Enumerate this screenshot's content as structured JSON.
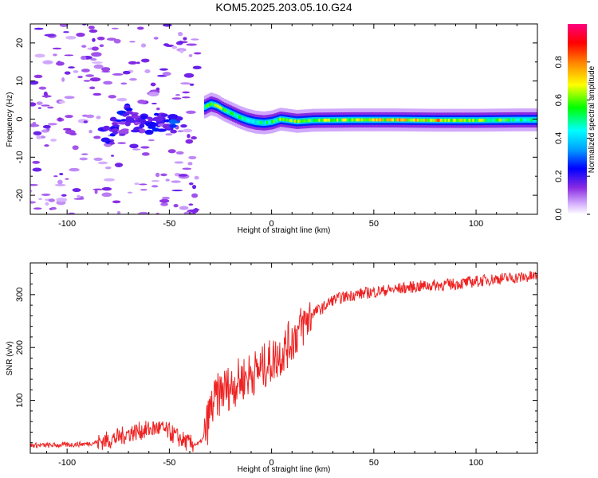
{
  "title": "KOM5.2025.203.05.10.G24",
  "colors": {
    "snr_line": "#ee2222",
    "axis": "#000000"
  },
  "colorbar": {
    "label": "Normalized spectral amplitude",
    "ticks": [
      "0.0",
      "0.2",
      "0.4",
      "0.6",
      "0.8"
    ],
    "range": [
      0,
      1
    ],
    "colormap": "rainbow (white-violet-blue-cyan-green-yellow-red-magenta)"
  },
  "chart_data": [
    {
      "type": "heatmap",
      "name": "spectrogram",
      "xlabel": "Height of straight line (km)",
      "ylabel": "Frequency (Hz)",
      "xlim": [
        -118,
        130
      ],
      "ylim": [
        -25,
        25
      ],
      "xticks": [
        -100,
        -50,
        0,
        50,
        100
      ],
      "yticks": [
        -20,
        -10,
        0,
        10,
        20
      ],
      "xtick_labels": [
        "-100",
        "-50",
        "0",
        "50",
        "100"
      ],
      "ytick_labels": [
        "-20",
        "-10",
        "0",
        "10",
        "20"
      ],
      "ridge": {
        "x": [
          -33,
          -30,
          -27,
          -24,
          -20,
          -16,
          -12,
          -8,
          -4,
          0,
          4,
          8,
          12,
          20,
          40,
          60,
          80,
          100,
          120,
          130
        ],
        "y": [
          3.2,
          4.0,
          3.5,
          2.5,
          1.5,
          0.5,
          -0.3,
          -0.8,
          -1.0,
          -0.7,
          0.0,
          -0.3,
          -0.6,
          -0.3,
          -0.2,
          -0.2,
          -0.3,
          -0.3,
          -0.2,
          -0.2
        ],
        "amplitude": [
          0.45,
          0.55,
          0.6,
          0.55,
          0.5,
          0.45,
          0.4,
          0.4,
          0.45,
          0.5,
          0.55,
          0.55,
          0.6,
          0.55,
          0.6,
          0.65,
          0.7,
          0.55,
          0.5,
          0.45
        ]
      },
      "low_altitude_clusters": {
        "x": [
          -80,
          -75,
          -72,
          -68,
          -64,
          -60,
          -56,
          -52,
          -48
        ],
        "y": [
          -4,
          -2,
          1,
          0,
          -1,
          -2,
          -1,
          -0.5,
          0.5
        ],
        "amplitude": [
          0.2,
          0.15,
          0.2,
          0.15,
          0.15,
          0.2,
          0.2,
          0.15,
          0.25
        ]
      }
    },
    {
      "type": "line",
      "name": "snr",
      "xlabel": "Height of straight line (km)",
      "ylabel": "SNR (v/v)",
      "xlim": [
        -118,
        130
      ],
      "ylim": [
        0,
        360
      ],
      "xticks": [
        -100,
        -50,
        0,
        50,
        100
      ],
      "yticks": [
        100,
        200,
        300
      ],
      "xtick_labels": [
        "-100",
        "-50",
        "0",
        "50",
        "100"
      ],
      "ytick_labels": [
        "100",
        "200",
        "300"
      ],
      "series": [
        {
          "x": [
            -118,
            -110,
            -100,
            -90,
            -80,
            -75,
            -70,
            -65,
            -60,
            -55,
            -50,
            -45,
            -40,
            -36,
            -33,
            -30,
            -27,
            -24,
            -20,
            -15,
            -10,
            -5,
            0,
            5,
            10,
            15,
            20,
            25,
            30,
            40,
            50,
            60,
            70,
            80,
            90,
            100,
            110,
            120,
            130
          ],
          "y": [
            15,
            15,
            16,
            18,
            25,
            30,
            38,
            42,
            45,
            48,
            40,
            28,
            18,
            17,
            30,
            80,
            105,
            120,
            125,
            140,
            150,
            160,
            175,
            190,
            215,
            240,
            265,
            275,
            290,
            300,
            305,
            310,
            315,
            318,
            320,
            325,
            330,
            332,
            335
          ]
        }
      ]
    }
  ]
}
